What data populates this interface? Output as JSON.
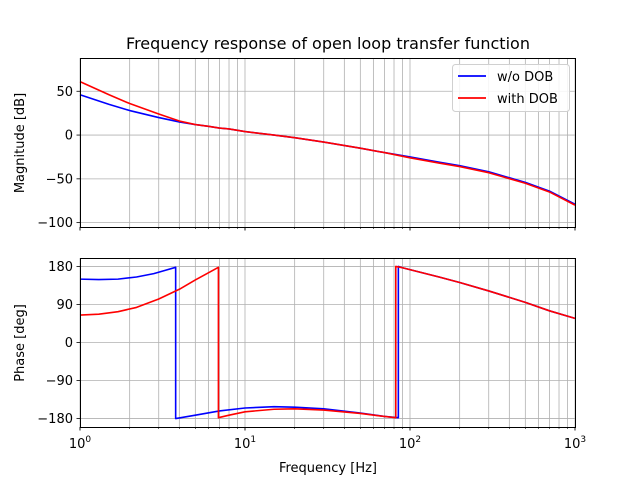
{
  "figure_title": "Frequency response of open loop transfer function",
  "colors": {
    "wo_dob": "#0000ff",
    "with_dob": "#ff0000",
    "grid": "#b0b0b0"
  },
  "chart_data": [
    {
      "type": "line",
      "panel": "magnitude",
      "title": "Frequency response of open loop transfer function",
      "xlabel": "",
      "ylabel": "Magnitude [dB]",
      "xscale": "log",
      "xlim": [
        1,
        1000
      ],
      "ylim": [
        -105,
        88
      ],
      "yticks": [
        50,
        0,
        -50,
        -100
      ],
      "ytick_labels": [
        "50",
        "0",
        "−50",
        "−100"
      ],
      "grid": "on (major and minor)",
      "legend": "top-right",
      "series": [
        {
          "name": "w/o DOB",
          "color": "#0000ff",
          "x": [
            1,
            1.5,
            2,
            3,
            4,
            5,
            6,
            7,
            8,
            10,
            15,
            20,
            30,
            50,
            70,
            100,
            150,
            200,
            300,
            500,
            700,
            1000
          ],
          "y": [
            46,
            35,
            28,
            20,
            15,
            12,
            10,
            8,
            7,
            4,
            0,
            -3,
            -8,
            -15,
            -20,
            -25,
            -31,
            -35,
            -42,
            -54,
            -64,
            -79
          ]
        },
        {
          "name": "with DOB",
          "color": "#ff0000",
          "x": [
            1,
            1.5,
            2,
            3,
            4,
            5,
            6,
            7,
            8,
            10,
            15,
            20,
            30,
            50,
            70,
            100,
            150,
            200,
            300,
            500,
            700,
            1000
          ],
          "y": [
            61,
            46,
            36,
            24,
            16,
            12,
            10,
            8,
            7,
            4,
            0,
            -3,
            -8,
            -15,
            -20,
            -26,
            -32,
            -36,
            -43,
            -55,
            -65,
            -80
          ]
        }
      ]
    },
    {
      "type": "line",
      "panel": "phase",
      "xlabel": "Frequency [Hz]",
      "ylabel": "Phase [deg]",
      "xscale": "log",
      "xlim": [
        1,
        1000
      ],
      "ylim": [
        -200,
        200
      ],
      "yticks": [
        180,
        90,
        0,
        -90,
        -180
      ],
      "ytick_labels": [
        "180",
        "90",
        "0",
        "−90",
        "−180"
      ],
      "xticks": [
        1,
        10,
        100,
        1000
      ],
      "xtick_labels": [
        [
          "10",
          "0"
        ],
        [
          "10",
          "1"
        ],
        [
          "10",
          "2"
        ],
        [
          "10",
          "3"
        ]
      ],
      "grid": "on (major and minor)",
      "series": [
        {
          "name": "w/o DOB",
          "color": "#0000ff",
          "x": [
            1,
            1.3,
            1.7,
            2.2,
            2.8,
            3.3,
            3.8,
            3.8,
            5,
            7,
            10,
            15,
            20,
            30,
            50,
            70,
            85,
            85,
            90,
            150,
            200,
            300,
            500,
            700,
            1000
          ],
          "y": [
            150,
            149,
            150,
            155,
            163,
            171,
            178,
            -180,
            -172,
            -162,
            -155,
            -152,
            -153,
            -157,
            -167,
            -175,
            -178,
            180,
            177,
            155,
            142,
            122,
            95,
            75,
            57
          ]
        },
        {
          "name": "with DOB",
          "color": "#ff0000",
          "x": [
            1,
            1.3,
            1.7,
            2.2,
            3,
            4,
            5,
            6,
            6.9,
            6.9,
            8,
            10,
            15,
            20,
            30,
            50,
            70,
            82,
            82,
            90,
            150,
            200,
            300,
            500,
            700,
            1000
          ],
          "y": [
            65,
            67,
            73,
            83,
            103,
            126,
            148,
            165,
            178,
            -178,
            -172,
            -164,
            -158,
            -157,
            -160,
            -168,
            -175,
            -178,
            180,
            177,
            155,
            142,
            122,
            95,
            75,
            57
          ]
        }
      ]
    }
  ]
}
